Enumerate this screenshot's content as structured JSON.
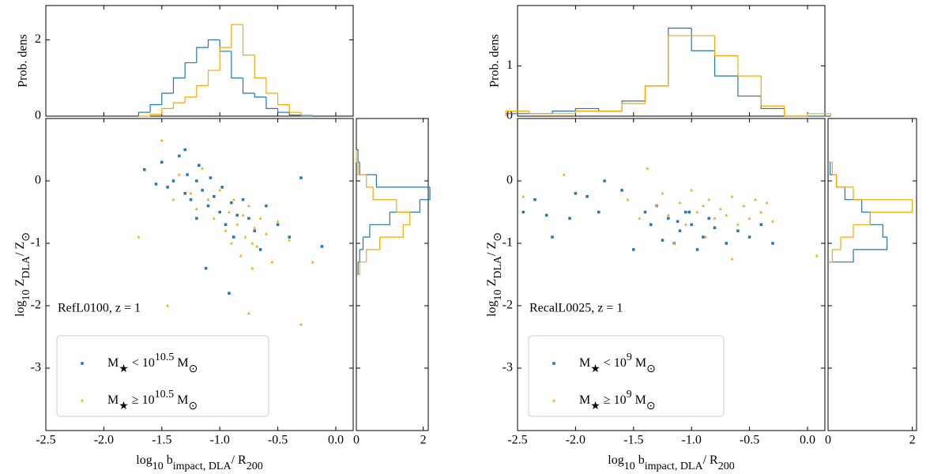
{
  "chart_data": [
    {
      "type": "scatter",
      "annotation": "RefL0100, z = 1",
      "xlabel": [
        "log",
        "10",
        " b",
        "impact, DLA",
        "/ R",
        "200"
      ],
      "ylabel": [
        "log",
        "10",
        " Z",
        "DLA",
        "/ Z",
        "⊙"
      ],
      "xlim": [
        -2.5,
        0.15
      ],
      "ylim": [
        -4.0,
        1.0
      ],
      "xticks": [
        -2.5,
        {
          "value": -2,
          "label": "-2.0"
        },
        -1.5,
        {
          "value": -1,
          "label": "-1.0"
        },
        -0.5,
        {
          "value": 0,
          "label": "0.0"
        }
      ],
      "yticks": [
        0,
        -1,
        -2,
        -3
      ],
      "legend_loc": "lower left",
      "series": [
        {
          "name": [
            "M",
            "★",
            " < 10",
            "10.5",
            " M",
            "⊙"
          ],
          "color": "#1f77b4",
          "marker": "square",
          "x": [
            -1.65,
            -1.55,
            -1.5,
            -1.45,
            -1.4,
            -1.35,
            -1.3,
            -1.28,
            -1.25,
            -1.2,
            -1.18,
            -1.15,
            -1.1,
            -1.08,
            -1.05,
            -1.0,
            -0.98,
            -0.95,
            -0.9,
            -0.88,
            -0.85,
            -0.8,
            -0.75,
            -0.7,
            -0.65,
            -0.6,
            -0.5,
            -0.4,
            -0.3,
            -0.12,
            -1.3,
            -1.2,
            -0.92,
            -1.12
          ],
          "y": [
            0.18,
            -0.05,
            0.3,
            -0.1,
            0.0,
            0.4,
            -0.2,
            0.1,
            -0.3,
            0.0,
            0.25,
            -0.15,
            -0.4,
            0.05,
            -0.25,
            -0.5,
            -0.1,
            -0.7,
            -0.35,
            -0.9,
            -0.55,
            -0.3,
            -0.6,
            -0.8,
            -1.1,
            -0.4,
            -0.7,
            -0.9,
            0.05,
            -1.05,
            0.5,
            -0.6,
            -1.8,
            -1.4
          ]
        },
        {
          "name": [
            "M",
            "★",
            " ≥ 10",
            "10.5",
            " M",
            "⊙"
          ],
          "color": "#ffa500",
          "marker": "triangle",
          "x": [
            -1.5,
            -1.4,
            -1.35,
            -1.25,
            -1.2,
            -1.15,
            -1.1,
            -1.05,
            -1.0,
            -0.95,
            -0.92,
            -0.9,
            -0.88,
            -0.85,
            -0.82,
            -0.8,
            -0.78,
            -0.75,
            -0.72,
            -0.7,
            -0.68,
            -0.65,
            -0.6,
            -0.55,
            -0.5,
            -0.4,
            -1.45,
            -0.3,
            -0.2,
            -0.75,
            -1.7,
            -0.72
          ],
          "y": [
            0.65,
            -0.3,
            0.1,
            -0.2,
            -0.45,
            0.2,
            -0.3,
            -0.6,
            -0.15,
            -0.8,
            -0.5,
            -1.0,
            -0.3,
            -0.7,
            -1.2,
            -0.55,
            -0.9,
            -0.4,
            -1.4,
            -0.75,
            -1.05,
            -0.6,
            -0.85,
            -1.3,
            -0.65,
            -0.95,
            -2.0,
            -2.3,
            -1.3,
            -2.12,
            -0.9,
            -1.0
          ]
        }
      ],
      "top_hist": {
        "ylabel": "Prob. dens",
        "ylim": [
          0,
          2.9
        ],
        "yticks": [
          0,
          2
        ],
        "bins": [
          -1.7,
          -1.6,
          -1.5,
          -1.4,
          -1.3,
          -1.2,
          -1.1,
          -1.0,
          -0.9,
          -0.8,
          -0.7,
          -0.6,
          -0.5,
          -0.4,
          -0.3,
          -0.2
        ],
        "series": [
          {
            "color": "#1f77b4",
            "values": [
              0.1,
              0.3,
              0.6,
              1.0,
              1.4,
              1.8,
              2.0,
              1.7,
              1.0,
              0.6,
              0.5,
              0.2,
              0.1,
              0.03,
              0
            ]
          },
          {
            "color": "#ffa500",
            "values": [
              0,
              0.05,
              0.2,
              0.35,
              0.5,
              0.8,
              1.2,
              1.8,
              2.4,
              1.6,
              1.0,
              0.6,
              0.3,
              0.1,
              0.03
            ]
          }
        ]
      },
      "side_hist": {
        "xlim": [
          0,
          2.15
        ],
        "xticks": [
          0,
          2
        ],
        "bins": [
          -1.5,
          -1.3,
          -1.1,
          -0.9,
          -0.7,
          -0.5,
          -0.3,
          -0.1,
          0.1,
          0.3,
          0.5
        ],
        "series": [
          {
            "color": "#1f77b4",
            "values": [
              0.05,
              0.1,
              0.2,
              0.4,
              1.0,
              1.9,
              2.2,
              0.6,
              0.1,
              0.05
            ]
          },
          {
            "color": "#ffa500",
            "values": [
              0.1,
              0.3,
              0.7,
              1.4,
              1.6,
              1.2,
              0.5,
              0.3,
              0.05,
              0
            ]
          }
        ]
      }
    },
    {
      "type": "scatter",
      "annotation": "RecalL0025, z = 1",
      "xlabel": [
        "log",
        "10",
        " b",
        "impact, DLA",
        "/ R",
        "200"
      ],
      "ylabel": [
        "log",
        "10",
        " Z",
        "DLA",
        "/ Z",
        "⊙"
      ],
      "xlim": [
        -2.5,
        0.15
      ],
      "ylim": [
        -4.0,
        1.0
      ],
      "xticks": [
        -2.5,
        {
          "value": -2,
          "label": "-2.0"
        },
        -1.5,
        {
          "value": -1,
          "label": "-1.0"
        },
        -0.5,
        {
          "value": 0,
          "label": "0.0"
        }
      ],
      "yticks": [
        0,
        -1,
        -2,
        -3
      ],
      "legend_loc": "lower left",
      "series": [
        {
          "name": [
            "M",
            "★",
            " < 10",
            "9",
            " M",
            "⊙"
          ],
          "color": "#1f77b4",
          "marker": "square",
          "x": [
            -2.45,
            -2.35,
            -2.25,
            -2.2,
            -2.05,
            -2.0,
            -1.9,
            -1.8,
            -1.75,
            -1.6,
            -1.5,
            -1.4,
            -1.35,
            -1.3,
            -1.25,
            -1.2,
            -1.15,
            -1.1,
            -1.05,
            -1.0,
            -0.95,
            -0.9,
            -0.85,
            -0.8,
            -0.7,
            -0.6,
            -0.5,
            -0.4,
            -0.3,
            -1.02,
            -1.12
          ],
          "y": [
            -0.5,
            -0.3,
            -0.55,
            -0.9,
            -0.6,
            -0.2,
            -0.25,
            -0.5,
            0.0,
            -0.15,
            -1.1,
            -0.5,
            -0.7,
            -0.4,
            -0.95,
            -0.6,
            -1.0,
            -0.8,
            -0.5,
            -0.7,
            -1.1,
            -0.9,
            -0.6,
            -0.75,
            -1.0,
            -0.8,
            -0.9,
            -0.7,
            -1.0,
            -0.5,
            -0.65
          ]
        },
        {
          "name": [
            "M",
            "★",
            " ≥ 10",
            "9",
            " M",
            "⊙"
          ],
          "color": "#ffa500",
          "marker": "triangle",
          "x": [
            -2.45,
            -2.1,
            -1.55,
            -1.45,
            -1.38,
            -1.3,
            -1.25,
            -1.2,
            -1.1,
            -1.05,
            -1.0,
            -0.95,
            -0.9,
            -0.85,
            -0.8,
            -0.75,
            -0.7,
            -0.65,
            -0.6,
            -0.55,
            -0.5,
            -0.45,
            -0.4,
            -0.35,
            -0.3,
            -0.65,
            0.08,
            -1.15,
            -0.88
          ],
          "y": [
            -0.25,
            0.1,
            -0.3,
            -0.6,
            0.2,
            -0.4,
            -0.2,
            -0.55,
            -0.35,
            -0.7,
            -0.15,
            -0.5,
            -0.4,
            -0.3,
            -0.6,
            -0.45,
            -0.55,
            -0.25,
            -0.7,
            -0.4,
            -0.6,
            -0.3,
            -0.5,
            -0.35,
            -0.65,
            -1.25,
            -1.2,
            -1.0,
            -0.9
          ]
        }
      ],
      "top_hist": {
        "ylabel": "Prob. dens",
        "ylim": [
          0,
          2.2
        ],
        "yticks": [
          0,
          1
        ],
        "bins": [
          -2.6,
          -2.4,
          -2.2,
          -2.0,
          -1.8,
          -1.6,
          -1.4,
          -1.2,
          -1.0,
          -0.8,
          -0.6,
          -0.4,
          -0.2,
          0.0,
          0.2
        ],
        "series": [
          {
            "color": "#1f77b4",
            "values": [
              0.05,
              0.05,
              0.1,
              0.15,
              0.1,
              0.3,
              0.6,
              1.75,
              1.3,
              0.8,
              0.4,
              0.15,
              0,
              0
            ]
          },
          {
            "color": "#ffa500",
            "values": [
              0.1,
              0.05,
              0.05,
              0.1,
              0.1,
              0.25,
              0.6,
              1.6,
              1.6,
              1.2,
              0.8,
              0.2,
              0,
              0.05
            ]
          }
        ]
      },
      "side_hist": {
        "xlim": [
          0,
          2.1
        ],
        "xticks": [
          0,
          2
        ],
        "bins": [
          -1.3,
          -1.1,
          -0.9,
          -0.7,
          -0.5,
          -0.3,
          -0.1,
          0.1,
          0.3
        ],
        "series": [
          {
            "color": "#1f77b4",
            "values": [
              0.6,
              1.4,
              1.3,
              1.0,
              0.8,
              0.4,
              0.2,
              0.05
            ]
          },
          {
            "color": "#ffa500",
            "values": [
              0.1,
              0.3,
              0.6,
              1.0,
              2.0,
              0.6,
              0.2,
              0.1
            ]
          }
        ]
      }
    }
  ]
}
